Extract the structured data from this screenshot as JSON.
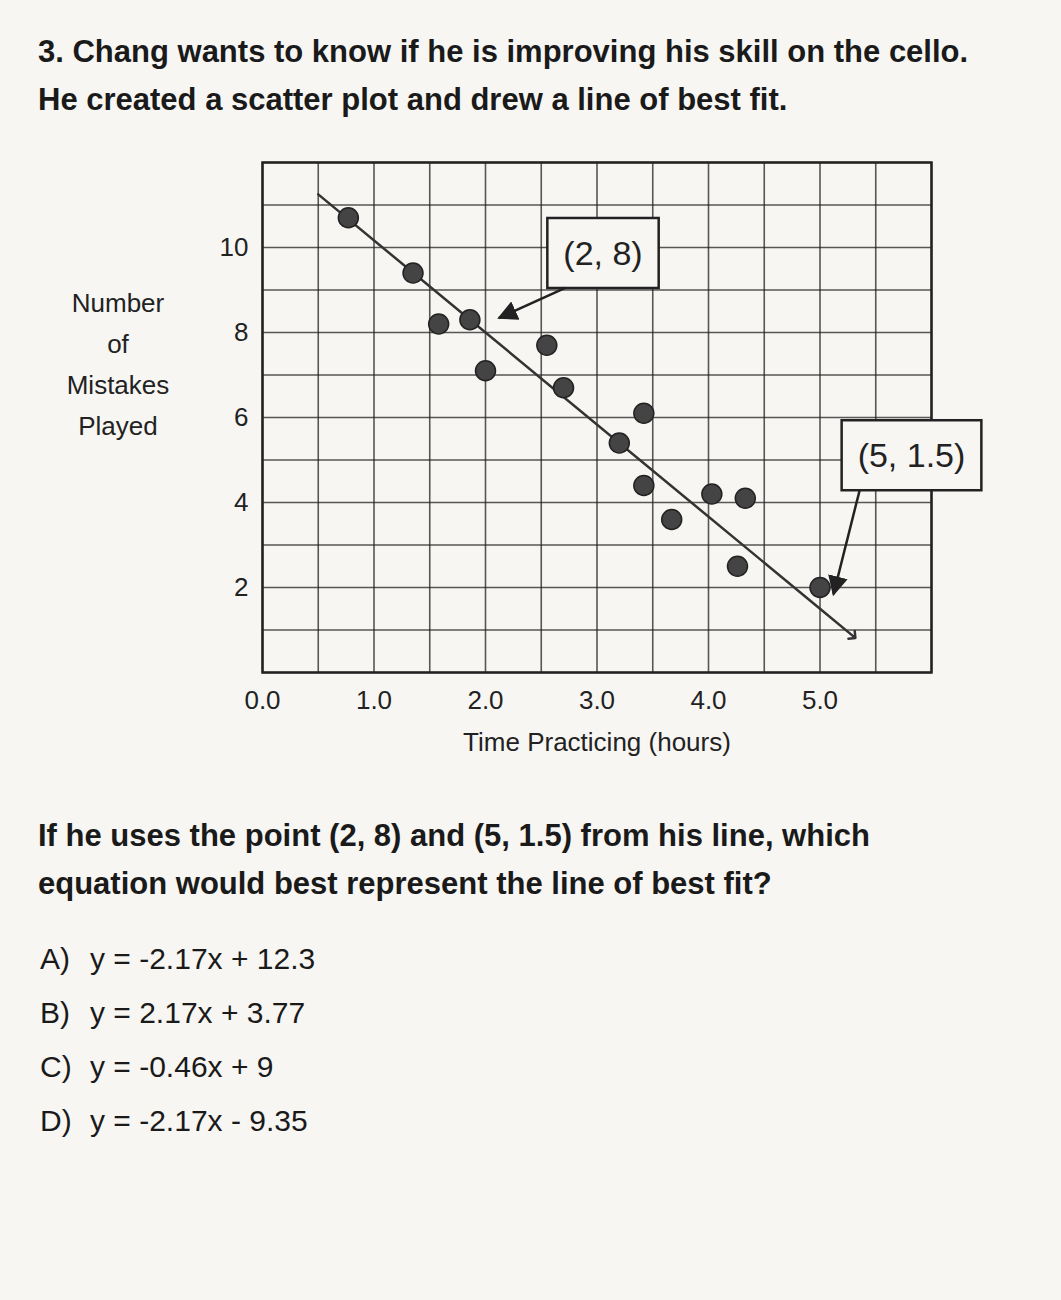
{
  "title": "3. Chang wants to know if he is improving his skill on the cello. He created a scatter plot and drew a line of best fit.",
  "chart_data": {
    "type": "scatter",
    "xlabel": "Time Practicing (hours)",
    "ylabel": "Number of Mistakes Played",
    "x": [
      0.77,
      1.35,
      1.58,
      1.86,
      2.0,
      2.55,
      2.7,
      3.2,
      3.42,
      3.42,
      3.67,
      4.03,
      4.26,
      4.33,
      5.0
    ],
    "values": [
      10.7,
      9.4,
      8.2,
      8.3,
      7.1,
      7.7,
      6.7,
      5.4,
      6.1,
      4.4,
      3.6,
      4.2,
      2.5,
      4.1,
      2.0
    ],
    "color": "#444444",
    "marker": "circle",
    "xlim": [
      0,
      6
    ],
    "ylim": [
      0,
      12
    ],
    "xticks": [
      0,
      1,
      2,
      3,
      4,
      5
    ],
    "yticks": [
      2,
      4,
      6,
      8,
      10
    ],
    "grid": true,
    "fit_line": {
      "x": [
        0.5,
        2,
        5,
        5.3
      ],
      "values": [
        11.25,
        8,
        1.5,
        0.85
      ]
    },
    "annotations": [
      {
        "text": "(2, 8)",
        "x": 2,
        "y": 8
      },
      {
        "text": "(5, 1.5)",
        "x": 5,
        "y": 1.5
      }
    ]
  },
  "question": "If he uses the point (2, 8) and (5, 1.5) from his line, which equation would best represent the line of best fit?",
  "choices": [
    {
      "label": "A)",
      "text": "y = -2.17x + 12.3"
    },
    {
      "label": "B)",
      "text": "y = 2.17x + 3.77"
    },
    {
      "label": "C)",
      "text": "y = -0.46x + 9"
    },
    {
      "label": "D)",
      "text": "y = -2.17x - 9.35"
    }
  ]
}
